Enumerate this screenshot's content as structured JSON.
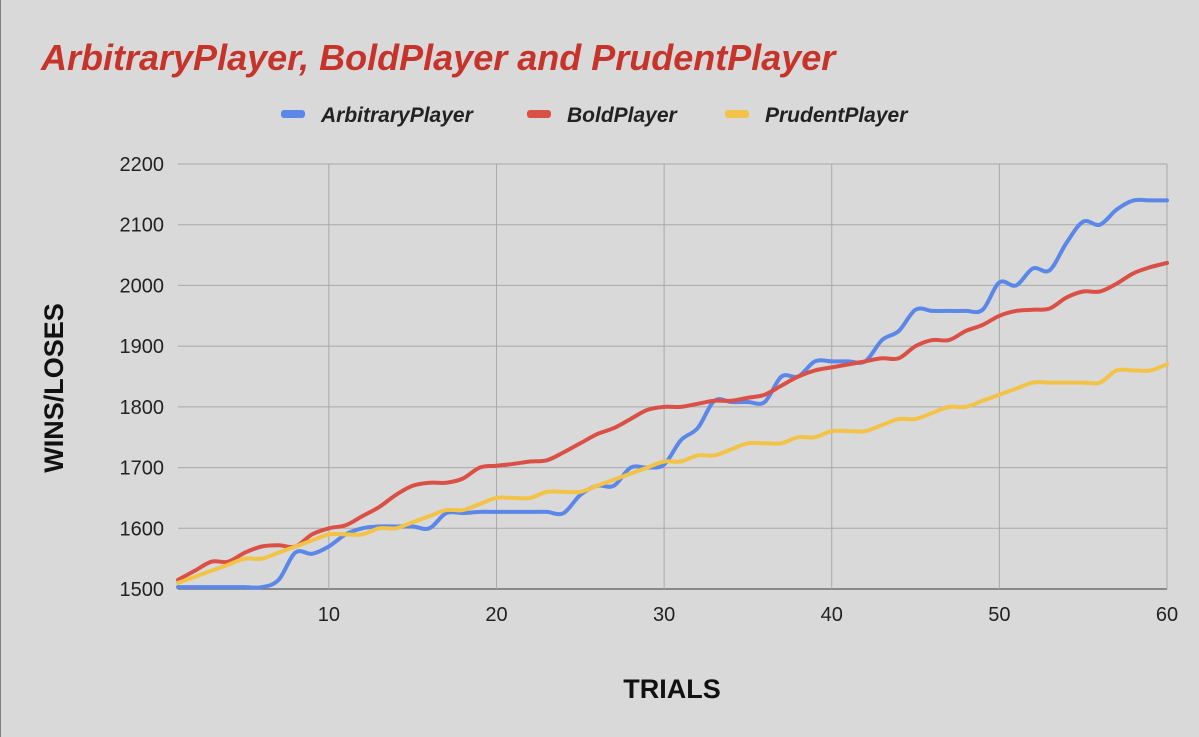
{
  "chart_data": {
    "type": "line",
    "title": "ArbitraryPlayer, BoldPlayer and PrudentPlayer",
    "xlabel": "TRIALS",
    "ylabel": "WINS/LOSES",
    "xlim": [
      1,
      60
    ],
    "ylim": [
      1500,
      2200
    ],
    "xticks": [
      10,
      20,
      30,
      40,
      50,
      60
    ],
    "yticks": [
      1500,
      1600,
      1700,
      1800,
      1900,
      2000,
      2100,
      2200
    ],
    "grid": true,
    "legend_position": "top",
    "x": [
      1,
      2,
      3,
      4,
      5,
      6,
      7,
      8,
      9,
      10,
      11,
      12,
      13,
      14,
      15,
      16,
      17,
      18,
      19,
      20,
      21,
      22,
      23,
      24,
      25,
      26,
      27,
      28,
      29,
      30,
      31,
      32,
      33,
      34,
      35,
      36,
      37,
      38,
      39,
      40,
      41,
      42,
      43,
      44,
      45,
      46,
      47,
      48,
      49,
      50,
      51,
      52,
      53,
      54,
      55,
      56,
      57,
      58,
      59,
      60
    ],
    "series": [
      {
        "name": "ArbitraryPlayer",
        "color": "#5b87e8",
        "values": [
          1503,
          1503,
          1503,
          1503,
          1503,
          1503,
          1515,
          1560,
          1558,
          1570,
          1590,
          1600,
          1603,
          1603,
          1603,
          1600,
          1625,
          1625,
          1627,
          1627,
          1627,
          1627,
          1627,
          1625,
          1655,
          1670,
          1670,
          1700,
          1700,
          1705,
          1745,
          1765,
          1810,
          1808,
          1808,
          1808,
          1850,
          1850,
          1875,
          1875,
          1875,
          1875,
          1910,
          1925,
          1960,
          1958,
          1958,
          1958,
          1960,
          2005,
          2000,
          2028,
          2025,
          2070,
          2105,
          2100,
          2125,
          2140,
          2140,
          2140
        ]
      },
      {
        "name": "BoldPlayer",
        "color": "#db5046",
        "values": [
          1515,
          1530,
          1545,
          1545,
          1560,
          1570,
          1572,
          1570,
          1590,
          1600,
          1605,
          1620,
          1635,
          1655,
          1670,
          1675,
          1675,
          1682,
          1700,
          1703,
          1706,
          1710,
          1712,
          1725,
          1740,
          1755,
          1765,
          1780,
          1795,
          1800,
          1800,
          1805,
          1810,
          1810,
          1815,
          1820,
          1835,
          1850,
          1860,
          1865,
          1870,
          1875,
          1880,
          1880,
          1900,
          1910,
          1910,
          1925,
          1935,
          1950,
          1958,
          1960,
          1962,
          1980,
          1990,
          1990,
          2003,
          2020,
          2030,
          2037
        ]
      },
      {
        "name": "PrudentPlayer",
        "color": "#f2c346",
        "values": [
          1510,
          1520,
          1530,
          1540,
          1550,
          1550,
          1560,
          1570,
          1580,
          1590,
          1590,
          1590,
          1600,
          1600,
          1610,
          1620,
          1630,
          1630,
          1640,
          1650,
          1650,
          1650,
          1660,
          1660,
          1660,
          1670,
          1680,
          1690,
          1700,
          1710,
          1710,
          1720,
          1720,
          1730,
          1740,
          1740,
          1740,
          1750,
          1750,
          1760,
          1760,
          1760,
          1770,
          1780,
          1780,
          1790,
          1800,
          1800,
          1810,
          1820,
          1830,
          1840,
          1840,
          1840,
          1840,
          1840,
          1860,
          1860,
          1860,
          1870
        ]
      }
    ]
  }
}
